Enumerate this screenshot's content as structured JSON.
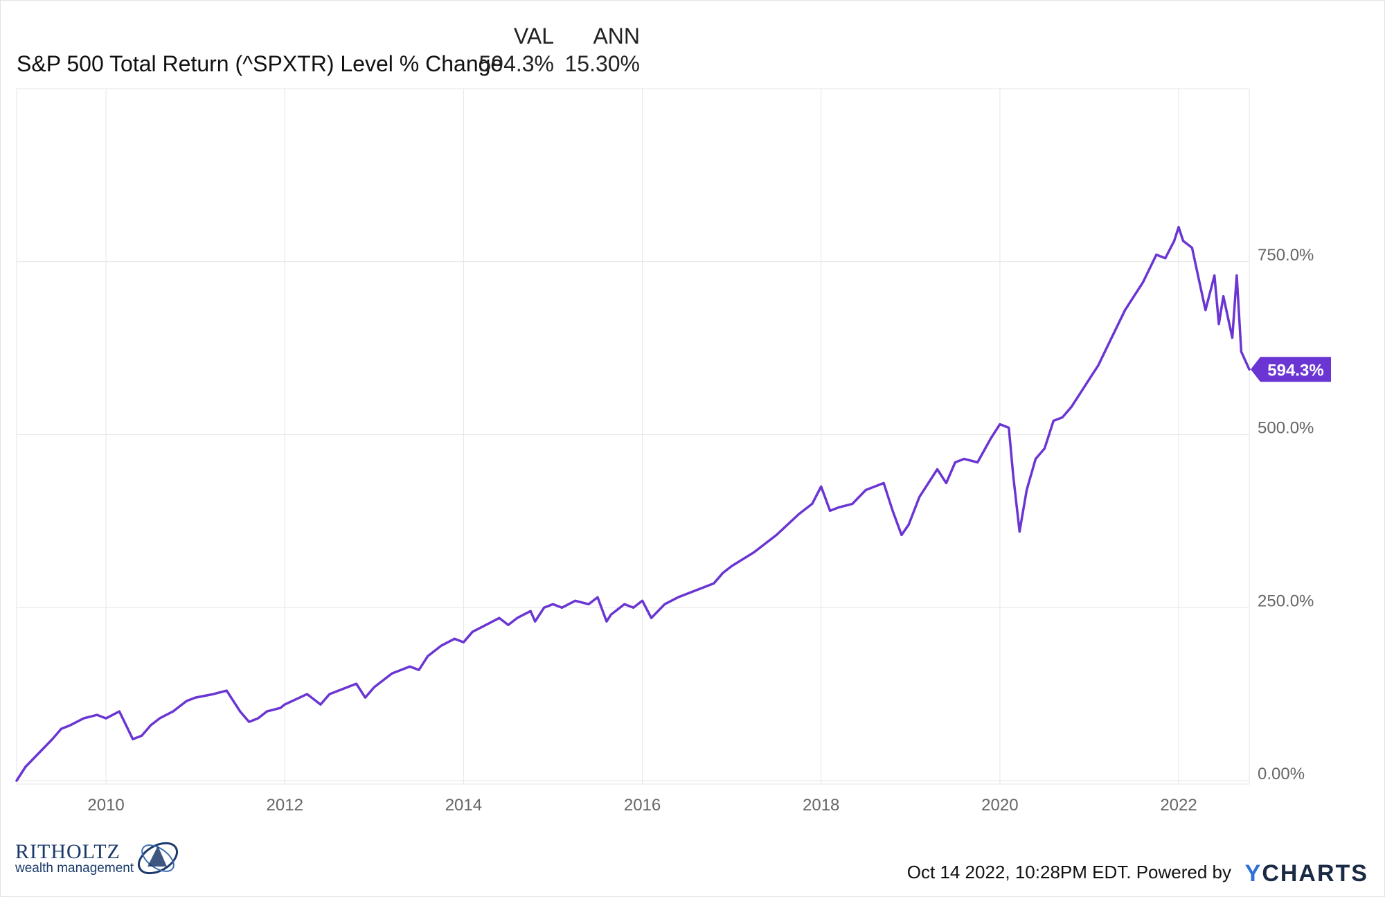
{
  "header": {
    "col_val": "VAL",
    "col_ann": "ANN",
    "series_label": "S&P 500 Total Return (^SPXTR) Level % Change",
    "series_val": "594.3%",
    "series_ann": "15.30%"
  },
  "chart_data": {
    "type": "line",
    "title": "",
    "xlabel": "",
    "ylabel": "",
    "x_tick_labels": [
      "2010",
      "2012",
      "2014",
      "2016",
      "2018",
      "2020",
      "2022"
    ],
    "y_tick_labels": [
      "0.00%",
      "250.0%",
      "500.0%",
      "750.0%"
    ],
    "y_ticks": [
      0,
      250,
      500,
      750
    ],
    "xlim": [
      2009.0,
      2022.79
    ],
    "ylim": [
      -5,
      1000
    ],
    "grid": true,
    "end_label": "594.3%",
    "series": [
      {
        "name": "S&P 500 Total Return (^SPXTR) Level % Change",
        "color": "#6a35d2",
        "x": [
          2009.0,
          2009.1,
          2009.25,
          2009.4,
          2009.5,
          2009.6,
          2009.75,
          2009.9,
          2010.0,
          2010.15,
          2010.3,
          2010.4,
          2010.5,
          2010.6,
          2010.75,
          2010.9,
          2011.0,
          2011.2,
          2011.35,
          2011.5,
          2011.6,
          2011.7,
          2011.8,
          2011.95,
          2012.0,
          2012.25,
          2012.4,
          2012.5,
          2012.6,
          2012.8,
          2012.9,
          2013.0,
          2013.2,
          2013.4,
          2013.5,
          2013.6,
          2013.75,
          2013.9,
          2014.0,
          2014.1,
          2014.25,
          2014.4,
          2014.5,
          2014.6,
          2014.75,
          2014.8,
          2014.9,
          2015.0,
          2015.1,
          2015.25,
          2015.4,
          2015.5,
          2015.6,
          2015.65,
          2015.8,
          2015.9,
          2016.0,
          2016.1,
          2016.25,
          2016.4,
          2016.5,
          2016.6,
          2016.8,
          2016.9,
          2017.0,
          2017.25,
          2017.5,
          2017.75,
          2017.9,
          2018.0,
          2018.1,
          2018.2,
          2018.35,
          2018.5,
          2018.7,
          2018.8,
          2018.9,
          2018.98,
          2019.1,
          2019.3,
          2019.4,
          2019.5,
          2019.6,
          2019.75,
          2019.9,
          2020.0,
          2020.1,
          2020.15,
          2020.22,
          2020.3,
          2020.4,
          2020.5,
          2020.6,
          2020.7,
          2020.8,
          2020.9,
          2021.0,
          2021.1,
          2021.25,
          2021.4,
          2021.5,
          2021.6,
          2021.75,
          2021.85,
          2021.95,
          2022.0,
          2022.05,
          2022.15,
          2022.2,
          2022.3,
          2022.4,
          2022.45,
          2022.5,
          2022.6,
          2022.65,
          2022.7,
          2022.79
        ],
        "y": [
          0,
          20,
          40,
          60,
          75,
          80,
          90,
          95,
          90,
          100,
          60,
          65,
          80,
          90,
          100,
          115,
          120,
          125,
          130,
          100,
          85,
          90,
          100,
          105,
          110,
          125,
          110,
          125,
          130,
          140,
          120,
          135,
          155,
          165,
          160,
          180,
          195,
          205,
          200,
          215,
          225,
          235,
          225,
          235,
          245,
          230,
          250,
          255,
          250,
          260,
          255,
          265,
          230,
          240,
          255,
          250,
          260,
          235,
          255,
          265,
          270,
          275,
          285,
          300,
          310,
          330,
          355,
          385,
          400,
          425,
          390,
          395,
          400,
          420,
          430,
          390,
          355,
          370,
          410,
          450,
          430,
          460,
          465,
          460,
          495,
          515,
          510,
          440,
          360,
          420,
          465,
          480,
          520,
          525,
          540,
          560,
          580,
          600,
          640,
          680,
          700,
          720,
          760,
          755,
          780,
          800,
          780,
          770,
          740,
          680,
          730,
          660,
          700,
          640,
          730,
          620,
          594.3
        ]
      }
    ]
  },
  "footer": {
    "timestamp": "Oct 14 2022, 10:28PM EDT. Powered by",
    "powered_y": "Y",
    "powered_rest": "CHARTS"
  },
  "logo": {
    "name": "RITHOLTZ",
    "subtitle": "wealth management"
  }
}
